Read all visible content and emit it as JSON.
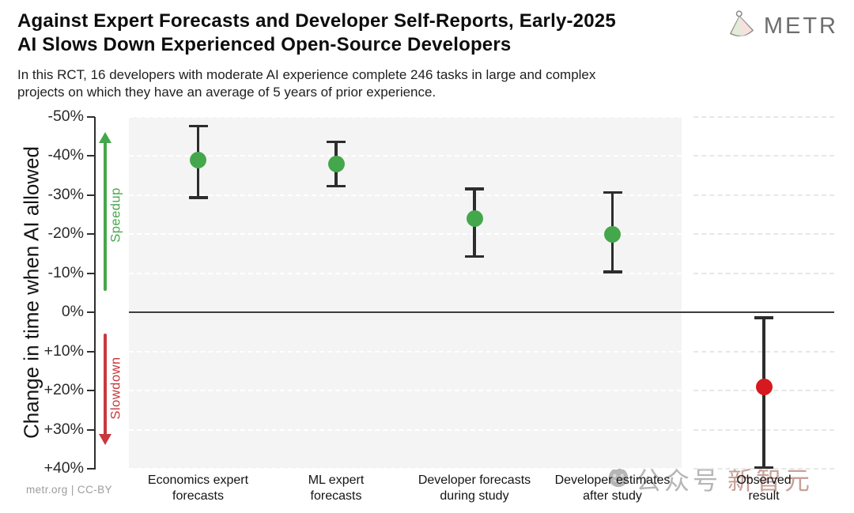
{
  "header": {
    "title_line1": "Against Expert Forecasts and Developer Self-Reports, Early-2025",
    "title_line2": "AI Slows Down Experienced Open-Source Developers",
    "subtitle_line1": "In this RCT, 16 developers with moderate AI experience complete 246 tasks in large and complex",
    "subtitle_line2": "projects on which they have an average of 5 years of prior experience.",
    "logo_text": "METR"
  },
  "footer": {
    "credit": "metr.org  |  CC-BY"
  },
  "watermark": {
    "text_part1": "公众号",
    "text_part2": "新智元"
  },
  "chart_data": {
    "type": "scatter",
    "title": "Against Expert Forecasts and Developer Self-Reports, Early-2025 AI Slows Down Experienced Open-Source Developers",
    "ylabel": "Change in time when AI allowed",
    "ylim": [
      -50,
      40
    ],
    "y_axis_inverted_note": "negative values (speedup) plotted at top, positive (slowdown) at bottom",
    "grid": "dashed horizontal",
    "legend": "none",
    "yticks": [
      {
        "v": -50,
        "label": "-50%"
      },
      {
        "v": -40,
        "label": "-40%"
      },
      {
        "v": -30,
        "label": "-30%"
      },
      {
        "v": -20,
        "label": "-20%"
      },
      {
        "v": -10,
        "label": "-10%"
      },
      {
        "v": 0,
        "label": "0%"
      },
      {
        "v": 10,
        "label": "+10%"
      },
      {
        "v": 20,
        "label": "+20%"
      },
      {
        "v": 30,
        "label": "+30%"
      },
      {
        "v": 40,
        "label": "+40%"
      }
    ],
    "annotations": {
      "speedup": "Speedup",
      "slowdown": "Slowdown"
    },
    "categories": [
      "Economics expert\nforecasts",
      "ML expert\nforecasts",
      "Developer forecasts\nduring study",
      "Developer estimates\nafter study",
      "Observed\nresult"
    ],
    "points": [
      {
        "category": "Economics expert forecasts",
        "value": -39,
        "ci": [
          -48,
          -29
        ],
        "color": "green",
        "panel": "main"
      },
      {
        "category": "ML expert forecasts",
        "value": -38,
        "ci": [
          -44,
          -32
        ],
        "color": "green",
        "panel": "main"
      },
      {
        "category": "Developer forecasts during study",
        "value": -24,
        "ci": [
          -32,
          -14
        ],
        "color": "green",
        "panel": "main"
      },
      {
        "category": "Developer estimates after study",
        "value": -20,
        "ci": [
          -31,
          -10
        ],
        "color": "green",
        "panel": "main"
      },
      {
        "category": "Observed result",
        "value": 19,
        "ci": [
          1,
          40
        ],
        "color": "red",
        "panel": "observed"
      }
    ],
    "colors": {
      "green": "#45a74b",
      "red": "#d6191e",
      "speedup_text": "#45a74b",
      "slowdown_text": "#c8393d",
      "errorbar": "#2d2d2d",
      "panel_bg": "#f4f4f5",
      "zero_line": "#3d3d3d"
    }
  }
}
